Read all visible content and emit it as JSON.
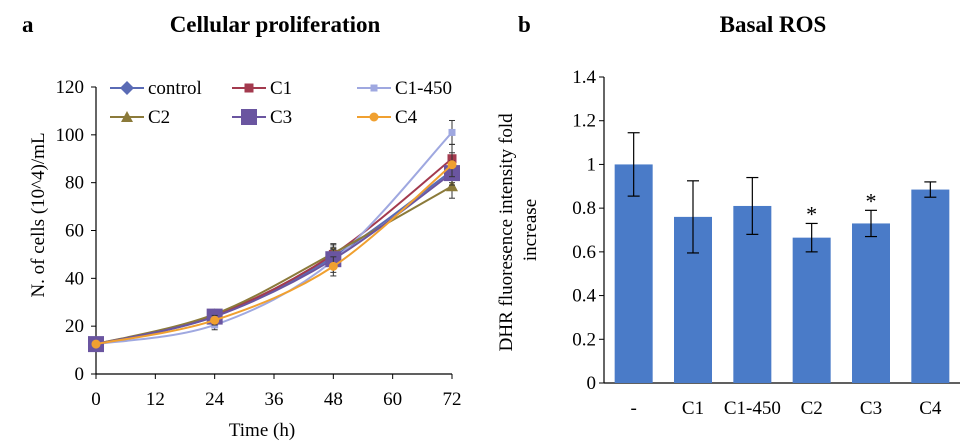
{
  "figure": {
    "panel_a_letter": "a",
    "panel_b_letter": "b"
  },
  "chart_data": [
    {
      "type": "line",
      "title": "Cellular proliferation",
      "xlabel": "Time (h)",
      "ylabel": "N. of cells (10^4)/mL",
      "x": [
        0,
        24,
        48,
        72
      ],
      "xticks": [
        "0",
        "12",
        "24",
        "36",
        "48",
        "60",
        "72"
      ],
      "xtick_values": [
        0,
        12,
        24,
        36,
        48,
        60,
        72
      ],
      "xlim": [
        0,
        72
      ],
      "ylim": [
        0,
        120
      ],
      "yticks": [
        "0",
        "20",
        "40",
        "60",
        "80",
        "100",
        "120"
      ],
      "ytick_values": [
        0,
        20,
        40,
        60,
        80,
        100,
        120
      ],
      "legend_position": "top-left",
      "series": [
        {
          "name": "control",
          "values": [
            12.5,
            24,
            49,
            85
          ],
          "errors": [
            1,
            2,
            4,
            5
          ],
          "color": "#5A6BB5",
          "marker": "diamond"
        },
        {
          "name": "C1",
          "values": [
            12.5,
            24.5,
            50,
            90
          ],
          "errors": [
            1,
            2,
            4,
            6
          ],
          "color": "#A33A4E",
          "marker": "square"
        },
        {
          "name": "C1-450",
          "values": [
            12.5,
            20.5,
            47.5,
            101
          ],
          "errors": [
            1,
            2,
            5,
            5
          ],
          "color": "#9FA8E0",
          "marker": "small-square"
        },
        {
          "name": "C2",
          "values": [
            12.5,
            25,
            50.5,
            78.5
          ],
          "errors": [
            1,
            2,
            4,
            5
          ],
          "color": "#8B7A3A",
          "marker": "triangle"
        },
        {
          "name": "C3",
          "values": [
            12.5,
            24,
            48,
            84
          ],
          "errors": [
            1,
            2,
            4,
            5
          ],
          "color": "#6A55A0",
          "marker": "big-square"
        },
        {
          "name": "C4",
          "values": [
            12.5,
            22.5,
            45,
            87.5
          ],
          "errors": [
            1,
            2,
            4,
            5
          ],
          "color": "#F0A030",
          "marker": "circle"
        }
      ]
    },
    {
      "type": "bar",
      "title": "Basal ROS",
      "xlabel": "",
      "ylabel": "DHR fluoresence intensity fold increase",
      "categories": [
        "-",
        "C1",
        "C1-450",
        "C2",
        "C3",
        "C4"
      ],
      "values": [
        1.0,
        0.76,
        0.81,
        0.665,
        0.73,
        0.885
      ],
      "errors": [
        0.145,
        0.165,
        0.13,
        0.065,
        0.06,
        0.035
      ],
      "significance": [
        "",
        "",
        "",
        "*",
        "*",
        ""
      ],
      "ylim": [
        0,
        1.4
      ],
      "yticks": [
        "0",
        "0.2",
        "0.4",
        "0.6",
        "0.8",
        "1",
        "1.2",
        "1.4"
      ],
      "ytick_values": [
        0,
        0.2,
        0.4,
        0.6,
        0.8,
        1.0,
        1.2,
        1.4
      ],
      "bar_color": "#4A7BC8"
    }
  ]
}
